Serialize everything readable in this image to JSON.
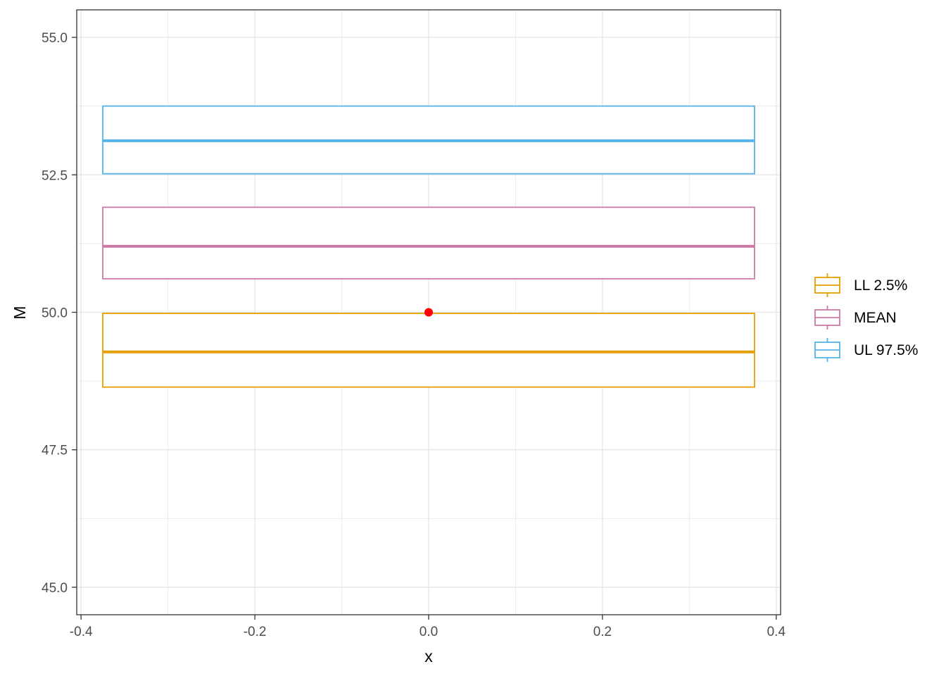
{
  "chart_data": {
    "type": "boxplot",
    "xlabel": "x",
    "ylabel": "M",
    "xlim": [
      -0.405,
      0.405
    ],
    "ylim": [
      44.5,
      55.5
    ],
    "x_ticks": [
      -0.4,
      -0.2,
      0.0,
      0.2,
      0.4
    ],
    "x_tick_labels": [
      "-0.4",
      "-0.2",
      "0.0",
      "0.2",
      "0.4"
    ],
    "y_ticks": [
      45.0,
      47.5,
      50.0,
      52.5,
      55.0
    ],
    "y_tick_labels": [
      "45.0",
      "47.5",
      "50.0",
      "52.5",
      "55.0"
    ],
    "grid": true,
    "legend_position": "right",
    "series": [
      {
        "name": "LL 2.5%",
        "color": "#E69F00",
        "q1": 48.64,
        "median": 49.28,
        "q3": 49.98,
        "x_min": -0.375,
        "x_max": 0.375
      },
      {
        "name": "MEAN",
        "color": "#CC79A7",
        "q1": 50.61,
        "median": 51.2,
        "q3": 51.91,
        "x_min": -0.375,
        "x_max": 0.375
      },
      {
        "name": "UL 97.5%",
        "color": "#56B4E9",
        "q1": 52.52,
        "median": 53.12,
        "q3": 53.75,
        "x_min": -0.375,
        "x_max": 0.375
      }
    ],
    "points": [
      {
        "x": 0.0,
        "y": 50.0,
        "color": "#FF0000"
      }
    ]
  }
}
